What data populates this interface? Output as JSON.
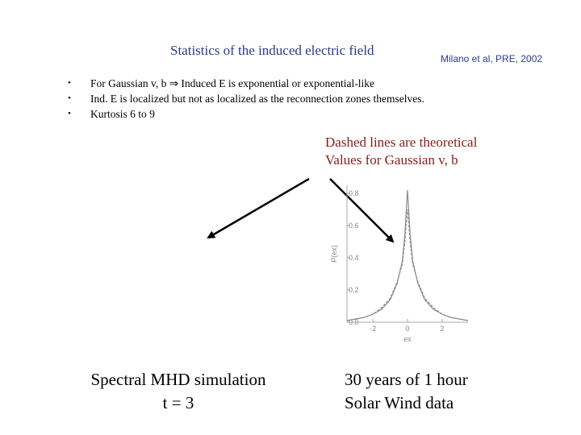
{
  "slide": {
    "title": "Statistics of the induced electric field",
    "citation": "Milano et al, PRE, 2002",
    "bullets": [
      "For Gaussian v, b ⇒ Induced E is exponential or exponential-like",
      "Ind. E is localized but not as localized as the reconnection zones themselves.",
      "Kurtosis 6 to 9"
    ],
    "note": {
      "line1": "Dashed lines are theoretical",
      "line2": "Values for Gaussian v, b"
    },
    "caption_left": {
      "line1": "Spectral MHD simulation",
      "line2": "t = 3"
    },
    "caption_right": {
      "line1": "30 years of 1 hour",
      "line2": "Solar Wind data"
    },
    "colors": {
      "title": "#2b3a8c",
      "note": "#8b1a1a",
      "arrow": "#000000",
      "plot_line": "#8a8a8a"
    }
  },
  "chart_data": {
    "type": "line",
    "title": "",
    "xlabel": "ex",
    "ylabel": "P(ex)",
    "xlim": [
      -3.5,
      3.5
    ],
    "ylim": [
      0,
      0.85
    ],
    "x_ticks": [
      "-2",
      "0",
      "2"
    ],
    "y_ticks": [
      "0.0",
      "0.2",
      "0.4",
      "0.6",
      "0.8"
    ],
    "grid": false,
    "series": [
      {
        "style": "solid",
        "x": [
          -3.5,
          -3.0,
          -2.5,
          -2.0,
          -1.5,
          -1.0,
          -0.6,
          -0.3,
          -0.15,
          0.0,
          0.15,
          0.3,
          0.6,
          1.0,
          1.5,
          2.0,
          2.5,
          3.0,
          3.5
        ],
        "y": [
          0.01,
          0.02,
          0.03,
          0.05,
          0.08,
          0.14,
          0.24,
          0.38,
          0.55,
          0.82,
          0.55,
          0.38,
          0.24,
          0.14,
          0.08,
          0.05,
          0.03,
          0.02,
          0.01
        ]
      },
      {
        "style": "dashed",
        "x": [
          -3.5,
          -3.0,
          -2.5,
          -2.0,
          -1.5,
          -1.0,
          -0.6,
          -0.3,
          -0.15,
          0.0,
          0.15,
          0.3,
          0.6,
          1.0,
          1.5,
          2.0,
          2.5,
          3.0,
          3.5
        ],
        "y": [
          0.01,
          0.02,
          0.03,
          0.05,
          0.09,
          0.15,
          0.25,
          0.36,
          0.5,
          0.7,
          0.5,
          0.36,
          0.25,
          0.15,
          0.09,
          0.05,
          0.03,
          0.02,
          0.01
        ]
      }
    ]
  }
}
